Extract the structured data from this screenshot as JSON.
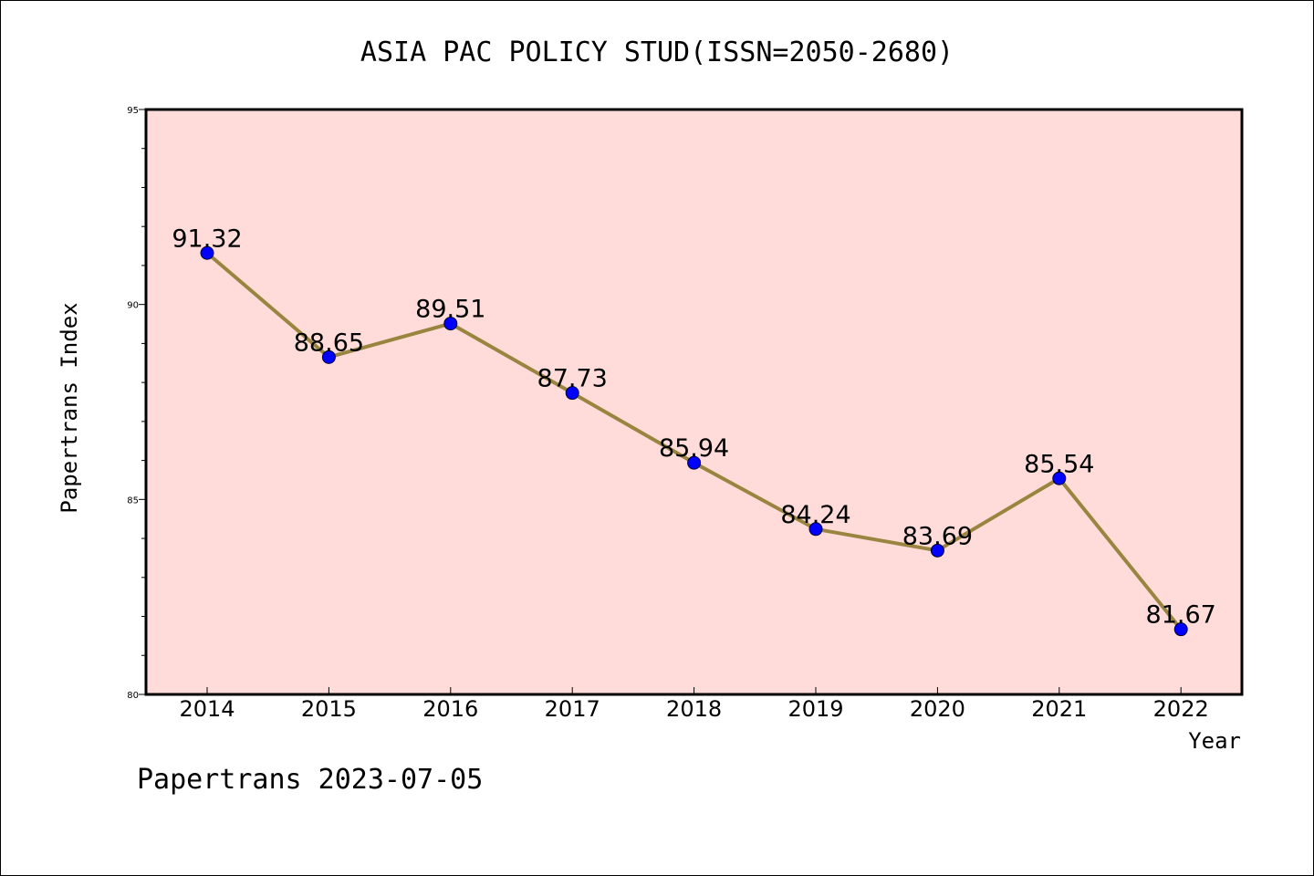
{
  "chart_data": {
    "type": "line",
    "title": "ASIA PAC POLICY STUD(ISSN=2050-2680)",
    "xlabel": "Year",
    "ylabel": "Papertrans Index",
    "ylim": [
      80,
      95
    ],
    "yticks": [
      "80",
      "85",
      "90",
      "95"
    ],
    "categories": [
      "2014",
      "2015",
      "2016",
      "2017",
      "2018",
      "2019",
      "2020",
      "2021",
      "2022"
    ],
    "values": [
      91.32,
      88.65,
      89.51,
      87.73,
      85.94,
      84.24,
      83.69,
      85.54,
      81.67
    ],
    "value_labels": [
      "91.32",
      "88.65",
      "89.51",
      "87.73",
      "85.94",
      "84.24",
      "83.69",
      "85.54",
      "81.67"
    ],
    "grid": false,
    "colors": {
      "plot_background": "#ffdcd9",
      "line": "#9a8540",
      "marker": "#0000ff"
    }
  },
  "footer": {
    "credit": "Papertrans 2023-07-05"
  }
}
